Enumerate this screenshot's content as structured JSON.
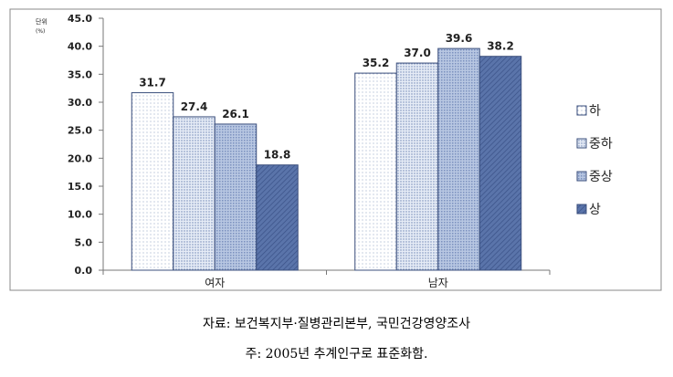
{
  "chart_data": {
    "type": "bar",
    "categories": [
      "여자",
      "남자"
    ],
    "series": [
      {
        "name": "하",
        "values": [
          31.7,
          35.2
        ],
        "color": "#ffffff"
      },
      {
        "name": "중하",
        "values": [
          27.4,
          37.0
        ],
        "color": "#dfe8f5"
      },
      {
        "name": "중상",
        "values": [
          26.1,
          39.6
        ],
        "color": "#b9c9e3"
      },
      {
        "name": "상",
        "values": [
          18.8,
          38.2
        ],
        "color": "#5570a8"
      }
    ],
    "ylabel": "단위\n(%)",
    "ylim": [
      0,
      45
    ],
    "yticks": [
      "0.0",
      "5.0",
      "10.0",
      "15.0",
      "20.0",
      "25.0",
      "30.0",
      "35.0",
      "40.0",
      "45.0"
    ],
    "grid": false,
    "legend_position": "right"
  },
  "notes": {
    "source": "자료: 보건복지부·질병관리본부, 국민건강영양조사",
    "footnote": "주: 2005년 추계인구로 표준화함."
  }
}
